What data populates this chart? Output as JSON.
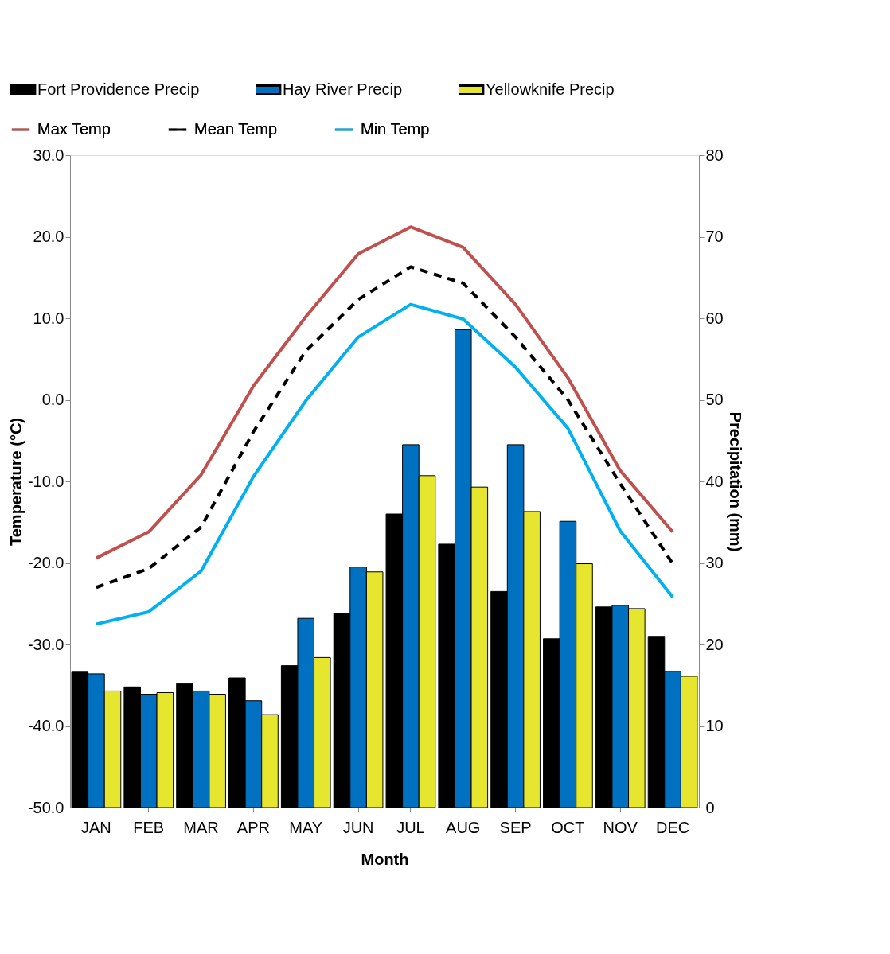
{
  "chart_data": {
    "type": "bar",
    "xlabel": "Month",
    "ylabel": "Temperature (°C)",
    "y2label": "Precipitation (mm)",
    "categories": [
      "JAN",
      "FEB",
      "MAR",
      "APR",
      "MAY",
      "JUN",
      "JUL",
      "AUG",
      "SEP",
      "OCT",
      "NOV",
      "DEC"
    ],
    "series": [
      {
        "name": "Fort Providence Precip",
        "axis": "y2",
        "color": "#000000",
        "values": [
          16.7,
          14.8,
          15.2,
          15.9,
          17.4,
          23.8,
          36.0,
          32.3,
          26.5,
          20.7,
          24.6,
          21.0
        ]
      },
      {
        "name": "Hay River Precip",
        "axis": "y2",
        "color": "#0070c0",
        "values": [
          16.4,
          13.9,
          14.3,
          13.1,
          23.2,
          29.5,
          44.5,
          58.6,
          44.5,
          35.1,
          24.8,
          16.7
        ]
      },
      {
        "name": "Yellowknife Precip",
        "axis": "y2",
        "color": "#e6e62e",
        "values": [
          14.3,
          14.1,
          13.9,
          11.4,
          18.4,
          28.9,
          40.7,
          39.3,
          36.3,
          29.9,
          24.4,
          16.1
        ]
      },
      {
        "name": "Max Temp",
        "type": "line",
        "color": "#c0504d",
        "line_style": "solid",
        "values": [
          -19.4,
          -16.2,
          -9.2,
          1.7,
          10.2,
          17.9,
          21.2,
          18.7,
          11.7,
          2.7,
          -8.7,
          -16.2
        ]
      },
      {
        "name": "Mean Temp",
        "type": "line",
        "color": "#000000",
        "line_style": "dashed",
        "values": [
          -23.0,
          -20.7,
          -15.6,
          -3.9,
          6.0,
          12.3,
          16.3,
          14.3,
          7.7,
          0.0,
          -10.3,
          -20.1
        ]
      },
      {
        "name": "Min Temp",
        "type": "line",
        "color": "#00b0f0",
        "line_style": "solid",
        "values": [
          -27.5,
          -26.0,
          -21.0,
          -9.4,
          -0.1,
          7.7,
          11.7,
          9.9,
          4.0,
          -3.5,
          -16.1,
          -24.2
        ]
      }
    ],
    "ylim": [
      -50,
      30
    ],
    "yticks": [
      {
        "value": -50,
        "label": "-50.0"
      },
      {
        "value": -40,
        "label": "-40.0"
      },
      {
        "value": -30,
        "label": "-30.0"
      },
      {
        "value": -20,
        "label": "-20.0"
      },
      {
        "value": -10,
        "label": "-10.0"
      },
      {
        "value": 0,
        "label": "0.0"
      },
      {
        "value": 10,
        "label": "10.0"
      },
      {
        "value": 20,
        "label": "20.0"
      },
      {
        "value": 30,
        "label": "30.0"
      }
    ],
    "y2lim": [
      0,
      80
    ],
    "y2ticks": [
      0,
      10,
      20,
      30,
      40,
      50,
      60,
      70,
      80
    ],
    "legend": "top",
    "grid": false
  }
}
